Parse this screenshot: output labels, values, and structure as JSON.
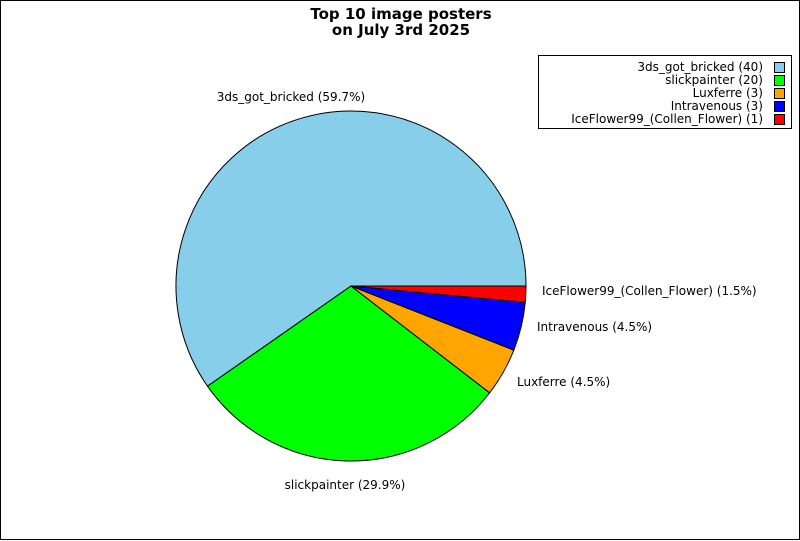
{
  "chart_data": {
    "type": "pie",
    "title": [
      "Top 10 image posters",
      "on July 3rd 2025"
    ],
    "legend_position": "top-right",
    "slices": [
      {
        "name": "3ds_got_bricked",
        "value": 40,
        "percent_label": "3ds_got_bricked (59.7%)",
        "legend_label": "3ds_got_bricked (40)",
        "color": "#87CEEB"
      },
      {
        "name": "slickpainter",
        "value": 20,
        "percent_label": "slickpainter (29.9%)",
        "legend_label": "slickpainter (20)",
        "color": "#00FF00"
      },
      {
        "name": "Luxferre",
        "value": 3,
        "percent_label": "Luxferre (4.5%)",
        "legend_label": "Luxferre (3)",
        "color": "#FFA500"
      },
      {
        "name": "Intravenous",
        "value": 3,
        "percent_label": "Intravenous (4.5%)",
        "legend_label": "Intravenous (3)",
        "color": "#0000FF"
      },
      {
        "name": "IceFlower99_(Collen_Flower)",
        "value": 1,
        "percent_label": "IceFlower99_(Collen_Flower) (1.5%)",
        "legend_label": "IceFlower99_(Collen_Flower) (1)",
        "color": "#FF0000"
      }
    ]
  }
}
